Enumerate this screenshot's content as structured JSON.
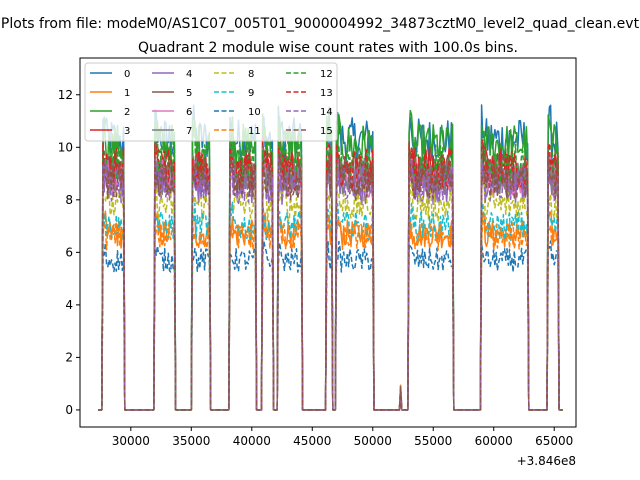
{
  "chart_data": {
    "type": "line",
    "suptitle": "Plots from file: modeM0/AS1C07_005T01_9000004992_34873cztM0_level2_quad_clean.evt",
    "title": "Quadrant 2 module wise count rates with 100.0s bins.",
    "xlabel": "",
    "ylabel": "",
    "x_offset_label": "+3.846e8",
    "xlim": [
      25800,
      66800
    ],
    "ylim": [
      -0.65,
      13.4
    ],
    "xticks": [
      30000,
      35000,
      40000,
      45000,
      50000,
      55000,
      60000,
      65000
    ],
    "xtick_labels": [
      "30000",
      "35000",
      "40000",
      "45000",
      "50000",
      "55000",
      "60000",
      "65000"
    ],
    "yticks": [
      0,
      2,
      4,
      6,
      8,
      10,
      12
    ],
    "ytick_labels": [
      "0",
      "2",
      "4",
      "6",
      "8",
      "10",
      "12"
    ],
    "legend_location": "upper-left",
    "legend_columns": 4,
    "active_intervals": [
      [
        27700,
        29400
      ],
      [
        32000,
        33600
      ],
      [
        35100,
        36500
      ],
      [
        38200,
        40300
      ],
      [
        40900,
        41700
      ],
      [
        42200,
        44100
      ],
      [
        46200,
        46600
      ],
      [
        47000,
        50000
      ],
      [
        53000,
        56600
      ],
      [
        59000,
        62800
      ],
      [
        64500,
        65300
      ]
    ],
    "blip": {
      "x": 52300,
      "y": 0.8
    },
    "series": [
      {
        "name": "0",
        "color": "#1f77b4",
        "dash": "solid",
        "level": 10.3
      },
      {
        "name": "1",
        "color": "#ff7f0e",
        "dash": "solid",
        "level": 6.7
      },
      {
        "name": "2",
        "color": "#2ca02c",
        "dash": "solid",
        "level": 10.1
      },
      {
        "name": "3",
        "color": "#d62728",
        "dash": "solid",
        "level": 9.3
      },
      {
        "name": "4",
        "color": "#9467bd",
        "dash": "solid",
        "level": 8.5
      },
      {
        "name": "5",
        "color": "#8c564b",
        "dash": "solid",
        "level": 9.0
      },
      {
        "name": "6",
        "color": "#e377c2",
        "dash": "solid",
        "level": 8.8
      },
      {
        "name": "7",
        "color": "#7f7f7f",
        "dash": "solid",
        "level": 8.9
      },
      {
        "name": "8",
        "color": "#bcbd22",
        "dash": "dashed",
        "level": 7.8
      },
      {
        "name": "9",
        "color": "#17becf",
        "dash": "dashed",
        "level": 7.0
      },
      {
        "name": "10",
        "color": "#1f77b4",
        "dash": "dashed",
        "level": 5.7
      },
      {
        "name": "11",
        "color": "#ff7f0e",
        "dash": "dashed",
        "level": 6.6
      },
      {
        "name": "12",
        "color": "#2ca02c",
        "dash": "dashed",
        "level": 9.4
      },
      {
        "name": "13",
        "color": "#d62728",
        "dash": "dashed",
        "level": 9.1
      },
      {
        "name": "14",
        "color": "#9467bd",
        "dash": "dashed",
        "level": 8.6
      },
      {
        "name": "15",
        "color": "#8c564b",
        "dash": "dashed",
        "level": 8.7
      }
    ]
  }
}
